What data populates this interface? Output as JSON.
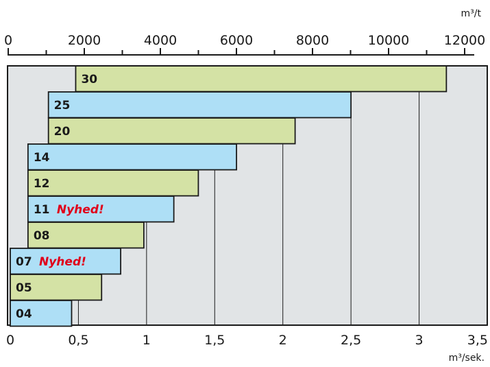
{
  "chart_data": {
    "type": "bar",
    "orientation": "horizontal",
    "top_axis": {
      "unit": "m³/t",
      "ticks": [
        "0",
        "2000",
        "4000",
        "6000",
        "8000",
        "10000",
        "12000"
      ],
      "tick_values": [
        0,
        2000,
        4000,
        6000,
        8000,
        10000,
        12000
      ],
      "range": [
        0,
        12600
      ]
    },
    "bottom_axis": {
      "unit": "m³/sek.",
      "ticks": [
        "0",
        "0,5",
        "1",
        "1,5",
        "2",
        "2,5",
        "3",
        "3,5"
      ],
      "tick_values": [
        0,
        0.5,
        1,
        1.5,
        2,
        2.5,
        3,
        3.5
      ],
      "range": [
        0,
        3.5
      ]
    },
    "grid": true,
    "bars": [
      {
        "label": "30",
        "start": 0.48,
        "end": 3.2,
        "color": "#d4e2a5",
        "badge": ""
      },
      {
        "label": "25",
        "start": 0.28,
        "end": 2.5,
        "color": "#aedff6",
        "badge": ""
      },
      {
        "label": "20",
        "start": 0.28,
        "end": 2.09,
        "color": "#d4e2a5",
        "badge": ""
      },
      {
        "label": "14",
        "start": 0.13,
        "end": 1.66,
        "color": "#aedff6",
        "badge": ""
      },
      {
        "label": "12",
        "start": 0.13,
        "end": 1.38,
        "color": "#d4e2a5",
        "badge": ""
      },
      {
        "label": "11",
        "start": 0.13,
        "end": 1.2,
        "color": "#aedff6",
        "badge": "Nyhed!"
      },
      {
        "label": "08",
        "start": 0.13,
        "end": 0.98,
        "color": "#d4e2a5",
        "badge": ""
      },
      {
        "label": "07",
        "start": 0.0,
        "end": 0.81,
        "color": "#aedff6",
        "badge": "Nyhed!"
      },
      {
        "label": "05",
        "start": 0.0,
        "end": 0.67,
        "color": "#d4e2a5",
        "badge": ""
      },
      {
        "label": "04",
        "start": 0.0,
        "end": 0.45,
        "color": "#aedff6",
        "badge": ""
      }
    ],
    "colors": {
      "plot_background": "#e1e4e6",
      "bar_green": "#d4e2a5",
      "bar_blue": "#aedff6",
      "badge": "#e0001a"
    }
  }
}
